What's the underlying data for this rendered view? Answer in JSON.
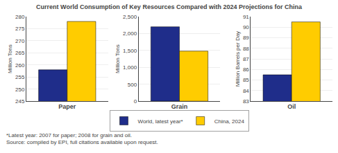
{
  "title": "Current World Consumption of Key Resources Compared with 2024 Projections for China",
  "legend": "bottom",
  "annotations": [
    {
      "text": "*Latest year: 2007 for paper; 2008 for grain and oil."
    },
    {
      "text": "Source: compiled by EPI, full citations available upon request."
    }
  ],
  "chart_data": [
    {
      "type": "bar",
      "xlabel": "Paper",
      "ylabel": "Million Tons",
      "categories": [
        null
      ],
      "series": [
        {
          "name": "World, latest year*",
          "color": "#1F2D8A",
          "values": [
            258
          ]
        },
        {
          "name": "China, 2024",
          "color": "#FFCC00",
          "values": [
            278
          ]
        }
      ],
      "ylim": [
        245,
        280
      ],
      "yticks": [
        245,
        250,
        255,
        260,
        265,
        270,
        275,
        280
      ],
      "grid": true,
      "tick_labels": "y"
    },
    {
      "type": "bar",
      "xlabel": "Grain",
      "ylabel": "Million Tons",
      "categories": [
        null
      ],
      "series": [
        {
          "name": "World, latest year*",
          "color": "#1F2D8A",
          "values": [
            2200
          ]
        },
        {
          "name": "China, 2024",
          "color": "#FFCC00",
          "values": [
            1480
          ]
        }
      ],
      "ylim": [
        0,
        2500
      ],
      "yticks": [
        0,
        500,
        {
          "value": 1000,
          "label": "1,000"
        },
        {
          "value": 1500,
          "label": "1,500"
        },
        {
          "value": 2000,
          "label": "2,000"
        },
        {
          "value": 2500,
          "label": "2,500"
        }
      ],
      "grid": true,
      "tick_labels": "y"
    },
    {
      "type": "bar",
      "xlabel": "Oil",
      "ylabel": "Million Barrels per Day",
      "categories": [
        null
      ],
      "series": [
        {
          "name": "World, latest year*",
          "color": "#1F2D8A",
          "values": [
            85.5
          ]
        },
        {
          "name": "China, 2024",
          "color": "#FFCC00",
          "values": [
            90.5
          ]
        }
      ],
      "ylim": [
        83,
        91
      ],
      "yticks": [
        83,
        84,
        85,
        86,
        87,
        88,
        89,
        90,
        91
      ],
      "grid": true,
      "tick_labels": "y"
    }
  ]
}
